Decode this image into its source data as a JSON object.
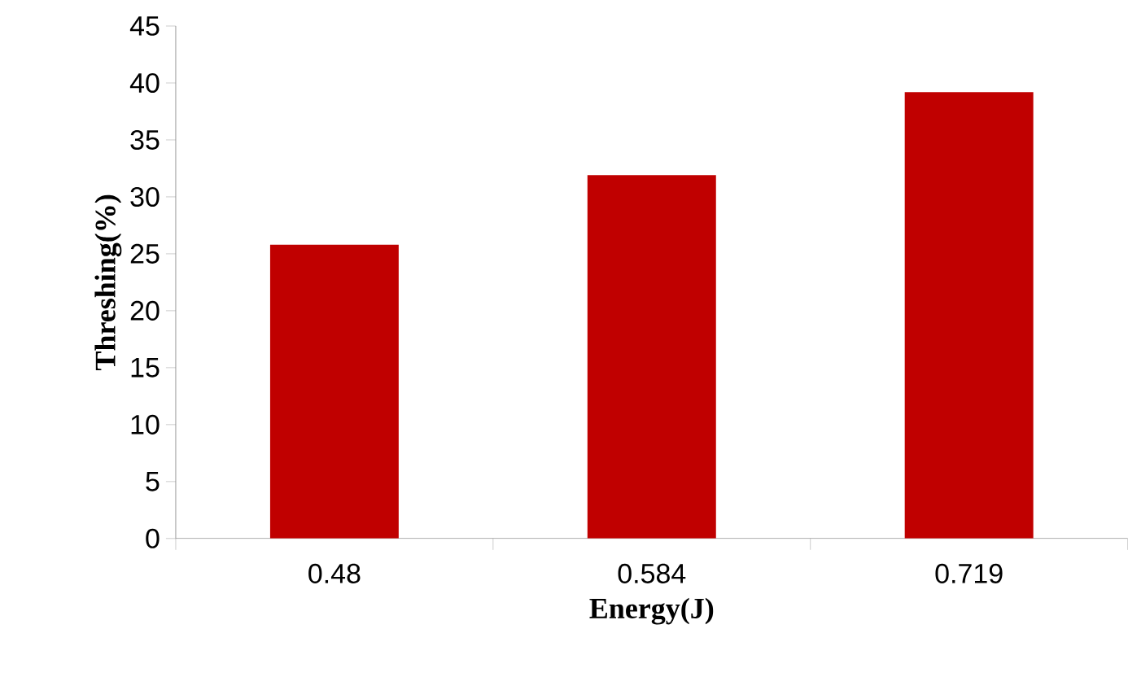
{
  "chart_data": {
    "type": "bar",
    "xlabel": "Energy(J)",
    "ylabel": "Threshing(%)",
    "categories": [
      "0.48",
      "0.584",
      "0.719"
    ],
    "values": [
      25.8,
      31.9,
      39.2
    ],
    "color": "#c00000",
    "ylim": [
      0,
      45
    ],
    "yticks": [
      0,
      5,
      10,
      15,
      20,
      25,
      30,
      35,
      40,
      45
    ]
  }
}
